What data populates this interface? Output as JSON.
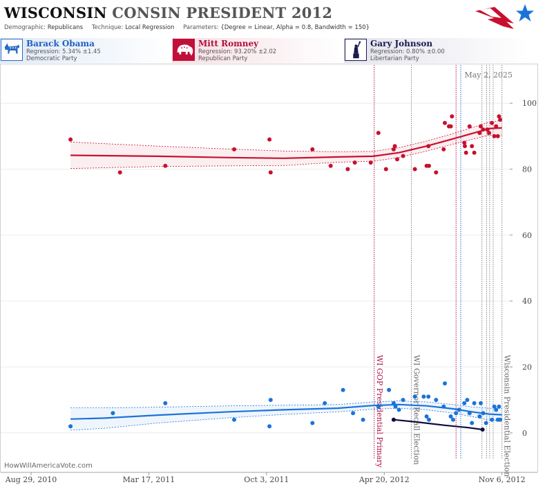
{
  "header": {
    "title_state": "WISCONSIN",
    "title_rest": "CONSIN PRESIDENT 2012",
    "demographic_label": "Demographic:",
    "demographic_value": "Republicans",
    "technique_label": "Technique:",
    "technique_value": "Local Regression",
    "parameters_label": "Parameters:",
    "parameters_value": "{Degree = Linear, Alpha = 0.8, Bandwidth = 150}"
  },
  "candidates": [
    {
      "name": "Barack Obama",
      "regression": "Regression: 5.34% ±1.45",
      "party": "Democratic Party",
      "icon": "donkey-icon",
      "color": "#1a73d9"
    },
    {
      "name": "Mitt Romney",
      "regression": "Regression: 93.20% ±2.02",
      "party": "Republican Party",
      "icon": "elephant-icon",
      "color": "#c8102e"
    },
    {
      "name": "Gary Johnson",
      "regression": "Regression: 0.80% ±0.00",
      "party": "Libertarian Party",
      "icon": "statue-of-liberty-icon",
      "color": "#0d0d40"
    }
  ],
  "watermark": "HowWillAmericaVote.com",
  "chart_data": {
    "type": "scatter",
    "x_axis_type": "date",
    "x_range": [
      "2010-08-29",
      "2012-12-01"
    ],
    "y_range": [
      -12,
      112
    ],
    "y_ticks": [
      0,
      20,
      40,
      60,
      80,
      100
    ],
    "x_tick_labels": [
      {
        "date": "2010-08-29",
        "label": "Aug 29, 2010"
      },
      {
        "date": "2011-03-17",
        "label": "Mar 17, 2011"
      },
      {
        "date": "2011-10-03",
        "label": "Oct 3, 2011"
      },
      {
        "date": "2012-04-20",
        "label": "Apr 20, 2012"
      },
      {
        "date": "2012-11-06",
        "label": "Nov 6, 2012"
      }
    ],
    "current_date_label": "May 2, 2025",
    "events": [
      {
        "date": "2012-04-03",
        "label": "WI GOP Presidential Primary",
        "color": "#b0104a",
        "style": "dotted"
      },
      {
        "date": "2012-06-05",
        "label": "WI Governor Recall Election",
        "color": "#888888",
        "style": "dotted"
      },
      {
        "date": "2012-11-06",
        "label": "Wisconsin Presidential Election",
        "color": "#888888",
        "style": "dotted"
      }
    ],
    "extra_verticals": [
      {
        "date": "2012-08-20",
        "color": "#b0104a"
      },
      {
        "date": "2012-08-28",
        "color": "#1a73d9"
      },
      {
        "date": "2012-10-03",
        "color": "#888888"
      },
      {
        "date": "2012-10-11",
        "color": "#888888"
      },
      {
        "date": "2012-10-16",
        "color": "#888888"
      },
      {
        "date": "2012-10-22",
        "color": "#888888"
      }
    ],
    "series": [
      {
        "name": "Mitt Romney",
        "color": "#c8102e",
        "points": [
          [
            "2010-11-04",
            89
          ],
          [
            "2011-01-27",
            79
          ],
          [
            "2011-04-14",
            81
          ],
          [
            "2011-08-09",
            86
          ],
          [
            "2011-10-08",
            89
          ],
          [
            "2011-10-10",
            79
          ],
          [
            "2011-12-20",
            86
          ],
          [
            "2012-01-20",
            81
          ],
          [
            "2012-02-18",
            80
          ],
          [
            "2012-03-01",
            82
          ],
          [
            "2012-03-28",
            82
          ],
          [
            "2012-04-10",
            91
          ],
          [
            "2012-04-23",
            80
          ],
          [
            "2012-05-06",
            86
          ],
          [
            "2012-05-08",
            87
          ],
          [
            "2012-05-12",
            83
          ],
          [
            "2012-05-22",
            84
          ],
          [
            "2012-06-11",
            80
          ],
          [
            "2012-07-01",
            81
          ],
          [
            "2012-07-04",
            87
          ],
          [
            "2012-07-05",
            81
          ],
          [
            "2012-07-17",
            79
          ],
          [
            "2012-07-30",
            86
          ],
          [
            "2012-08-01",
            94
          ],
          [
            "2012-08-08",
            93
          ],
          [
            "2012-08-11",
            93
          ],
          [
            "2012-08-13",
            96
          ],
          [
            "2012-09-03",
            88
          ],
          [
            "2012-09-04",
            87
          ],
          [
            "2012-09-06",
            85
          ],
          [
            "2012-09-12",
            93
          ],
          [
            "2012-09-16",
            87
          ],
          [
            "2012-09-20",
            85
          ],
          [
            "2012-09-29",
            91
          ],
          [
            "2012-10-01",
            93
          ],
          [
            "2012-10-05",
            92
          ],
          [
            "2012-10-12",
            92
          ],
          [
            "2012-10-15",
            91
          ],
          [
            "2012-10-20",
            94
          ],
          [
            "2012-10-24",
            90
          ],
          [
            "2012-10-27",
            93
          ],
          [
            "2012-10-30",
            90
          ],
          [
            "2012-11-01",
            96
          ],
          [
            "2012-11-03",
            95
          ]
        ],
        "trend": [
          [
            "2010-11-04",
            84.2
          ],
          [
            "2011-04-01",
            83.9
          ],
          [
            "2011-08-01",
            83.5
          ],
          [
            "2011-11-01",
            83.3
          ],
          [
            "2012-02-01",
            83.7
          ],
          [
            "2012-04-01",
            83.9
          ],
          [
            "2012-05-15",
            85.0
          ],
          [
            "2012-07-01",
            87.0
          ],
          [
            "2012-08-15",
            89.2
          ],
          [
            "2012-09-20",
            91.0
          ],
          [
            "2012-10-15",
            92.3
          ],
          [
            "2012-11-06",
            92.5
          ]
        ],
        "upper": [
          [
            "2010-11-04",
            88.2
          ],
          [
            "2011-04-01",
            87.0
          ],
          [
            "2011-08-01",
            86.1
          ],
          [
            "2011-11-01",
            85.5
          ],
          [
            "2012-02-01",
            85.3
          ],
          [
            "2012-04-01",
            85.4
          ],
          [
            "2012-05-15",
            86.5
          ],
          [
            "2012-07-01",
            88.5
          ],
          [
            "2012-08-15",
            90.8
          ],
          [
            "2012-09-20",
            92.8
          ],
          [
            "2012-10-15",
            94.3
          ],
          [
            "2012-11-06",
            94.8
          ]
        ],
        "lower": [
          [
            "2010-11-04",
            80.2
          ],
          [
            "2011-04-01",
            80.8
          ],
          [
            "2011-08-01",
            81.0
          ],
          [
            "2011-11-01",
            81.1
          ],
          [
            "2012-02-01",
            82.1
          ],
          [
            "2012-04-01",
            82.4
          ],
          [
            "2012-05-15",
            83.5
          ],
          [
            "2012-07-01",
            85.5
          ],
          [
            "2012-08-15",
            87.6
          ],
          [
            "2012-09-20",
            89.2
          ],
          [
            "2012-10-15",
            90.3
          ],
          [
            "2012-11-06",
            90.2
          ]
        ]
      },
      {
        "name": "Barack Obama",
        "color": "#1a73d9",
        "points": [
          [
            "2010-11-04",
            2
          ],
          [
            "2011-01-15",
            6
          ],
          [
            "2011-04-14",
            9
          ],
          [
            "2011-08-09",
            4
          ],
          [
            "2011-10-08",
            2
          ],
          [
            "2011-10-10",
            10
          ],
          [
            "2011-12-20",
            3
          ],
          [
            "2012-01-10",
            9
          ],
          [
            "2012-02-10",
            13
          ],
          [
            "2012-02-27",
            6
          ],
          [
            "2012-03-15",
            4
          ],
          [
            "2012-04-10",
            8
          ],
          [
            "2012-04-28",
            13
          ],
          [
            "2012-05-06",
            9
          ],
          [
            "2012-05-09",
            8
          ],
          [
            "2012-05-15",
            7
          ],
          [
            "2012-05-22",
            10
          ],
          [
            "2012-06-11",
            11
          ],
          [
            "2012-06-26",
            11
          ],
          [
            "2012-07-01",
            5
          ],
          [
            "2012-07-04",
            11
          ],
          [
            "2012-07-05",
            4
          ],
          [
            "2012-07-17",
            10
          ],
          [
            "2012-07-30",
            8
          ],
          [
            "2012-08-01",
            15
          ],
          [
            "2012-08-11",
            5
          ],
          [
            "2012-08-15",
            4
          ],
          [
            "2012-08-20",
            6
          ],
          [
            "2012-08-25",
            7
          ],
          [
            "2012-09-03",
            9
          ],
          [
            "2012-09-08",
            10
          ],
          [
            "2012-09-12",
            6
          ],
          [
            "2012-09-16",
            3
          ],
          [
            "2012-09-20",
            9
          ],
          [
            "2012-09-29",
            5
          ],
          [
            "2012-10-01",
            9
          ],
          [
            "2012-10-05",
            6
          ],
          [
            "2012-10-10",
            3
          ],
          [
            "2012-10-20",
            4
          ],
          [
            "2012-10-24",
            8
          ],
          [
            "2012-10-27",
            7
          ],
          [
            "2012-10-30",
            4
          ],
          [
            "2012-11-01",
            8
          ],
          [
            "2012-11-03",
            4
          ]
        ],
        "trend": [
          [
            "2010-11-04",
            4.2
          ],
          [
            "2011-01-01",
            4.5
          ],
          [
            "2011-04-01",
            5.4
          ],
          [
            "2011-08-01",
            6.4
          ],
          [
            "2011-11-01",
            7.0
          ],
          [
            "2012-02-01",
            7.5
          ],
          [
            "2012-04-01",
            8.3
          ],
          [
            "2012-05-15",
            8.6
          ],
          [
            "2012-07-01",
            8.2
          ],
          [
            "2012-08-15",
            7.3
          ],
          [
            "2012-09-20",
            6.3
          ],
          [
            "2012-10-15",
            5.7
          ],
          [
            "2012-11-06",
            5.5
          ]
        ],
        "upper": [
          [
            "2010-11-04",
            7.6
          ],
          [
            "2011-01-01",
            7.6
          ],
          [
            "2011-04-01",
            7.8
          ],
          [
            "2011-08-01",
            8.2
          ],
          [
            "2011-11-01",
            8.4
          ],
          [
            "2012-02-01",
            8.6
          ],
          [
            "2012-04-01",
            9.4
          ],
          [
            "2012-05-15",
            9.7
          ],
          [
            "2012-07-01",
            9.4
          ],
          [
            "2012-08-15",
            8.6
          ],
          [
            "2012-09-20",
            7.8
          ],
          [
            "2012-10-15",
            7.5
          ],
          [
            "2012-11-06",
            7.4
          ]
        ],
        "lower": [
          [
            "2010-11-04",
            0.8
          ],
          [
            "2011-01-01",
            1.4
          ],
          [
            "2011-04-01",
            3.0
          ],
          [
            "2011-08-01",
            4.6
          ],
          [
            "2011-11-01",
            5.6
          ],
          [
            "2012-02-01",
            6.4
          ],
          [
            "2012-04-01",
            7.2
          ],
          [
            "2012-05-15",
            7.5
          ],
          [
            "2012-07-01",
            7.0
          ],
          [
            "2012-08-15",
            6.0
          ],
          [
            "2012-09-20",
            4.8
          ],
          [
            "2012-10-15",
            3.9
          ],
          [
            "2012-11-06",
            3.6
          ]
        ]
      },
      {
        "name": "Gary Johnson",
        "color": "#0d0d40",
        "points": [
          [
            "2012-05-06",
            4
          ],
          [
            "2012-10-04",
            1
          ]
        ],
        "trend": [
          [
            "2012-05-06",
            4
          ],
          [
            "2012-06-15",
            3.3
          ],
          [
            "2012-08-01",
            2.3
          ],
          [
            "2012-09-10",
            1.6
          ],
          [
            "2012-10-04",
            1.0
          ]
        ]
      }
    ]
  }
}
